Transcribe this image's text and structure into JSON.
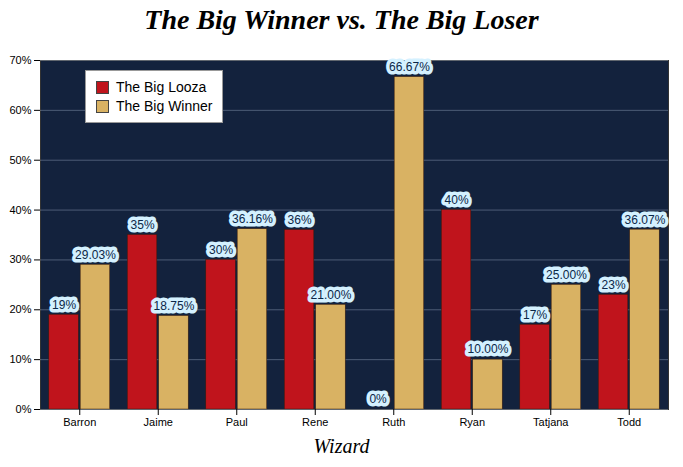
{
  "chart_data": {
    "type": "bar",
    "title": "The Big Winner vs. The Big Loser",
    "x_label": "Wizard",
    "categories": [
      "Barron",
      "Jaime",
      "Paul",
      "Rene",
      "Ruth",
      "Ryan",
      "Tatjana",
      "Todd"
    ],
    "series": [
      {
        "name": "The Big Looza",
        "color": "#c0141c",
        "values": [
          19,
          35,
          30,
          36,
          0,
          40,
          17,
          23
        ],
        "value_labels": [
          "19%",
          "35%",
          "30%",
          "36%",
          "0%",
          "40%",
          "17%",
          "23%"
        ]
      },
      {
        "name": "The Big Winner",
        "color": "#d9b263",
        "values": [
          29.03,
          18.75,
          36.16,
          21.0,
          66.67,
          10.0,
          25.0,
          36.07
        ],
        "value_labels": [
          "29.03%",
          "18.75%",
          "36.16%",
          "21.00%",
          "66.67%",
          "10.00%",
          "25.00%",
          "36.07%"
        ]
      }
    ],
    "ylim": [
      0,
      70
    ],
    "yticks": [
      {
        "value": 0,
        "label": "0%"
      },
      {
        "value": 10,
        "label": "10%"
      },
      {
        "value": 20,
        "label": "20%"
      },
      {
        "value": 30,
        "label": "30%"
      },
      {
        "value": 40,
        "label": "40%"
      },
      {
        "value": 50,
        "label": "50%"
      },
      {
        "value": 60,
        "label": "60%"
      },
      {
        "value": 70,
        "label": "70%"
      }
    ],
    "grid": true,
    "legend": "top-left",
    "data_labels": true
  }
}
